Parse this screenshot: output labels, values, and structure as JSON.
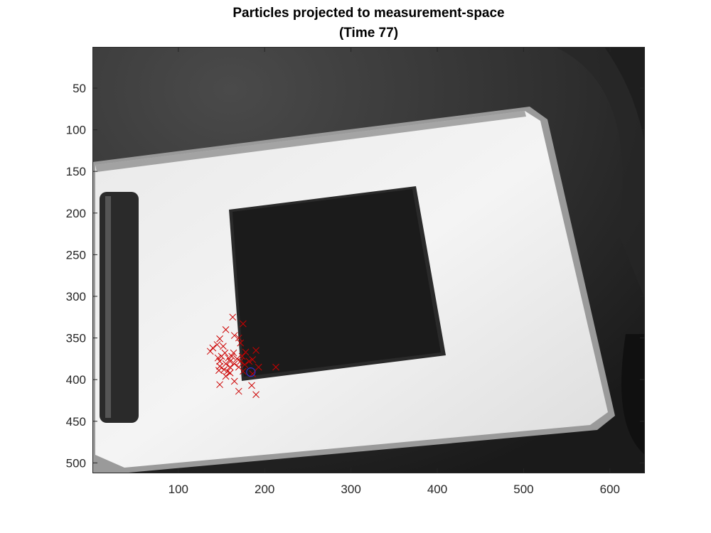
{
  "figure": {
    "title_line1": "Particles projected to measurement-space",
    "title_line2": "(Time 77)"
  },
  "chart_data": {
    "type": "scatter",
    "title": "Particles projected to measurement-space (Time 77)",
    "xlabel": "",
    "ylabel": "",
    "xlim": [
      0.5,
      640.5
    ],
    "ylim": [
      0.5,
      512.5
    ],
    "y_reversed": true,
    "grid": false,
    "x_ticks": [
      100,
      200,
      300,
      400,
      500,
      600
    ],
    "y_ticks": [
      50,
      100,
      150,
      200,
      250,
      300,
      350,
      400,
      450,
      500
    ],
    "background": "grayscale camera frame showing a white notebook with a black square",
    "series": [
      {
        "marker": "x",
        "color": "#cc0000",
        "points": [
          [
            163,
            325
          ],
          [
            175,
            333
          ],
          [
            155,
            340
          ],
          [
            165,
            347
          ],
          [
            170,
            350
          ],
          [
            148,
            351
          ],
          [
            172,
            356
          ],
          [
            145,
            358
          ],
          [
            152,
            360
          ],
          [
            140,
            362
          ],
          [
            137,
            366
          ],
          [
            190,
            365
          ],
          [
            178,
            367
          ],
          [
            154,
            368
          ],
          [
            164,
            368
          ],
          [
            150,
            372
          ],
          [
            162,
            372
          ],
          [
            174,
            372
          ],
          [
            146,
            374
          ],
          [
            158,
            374
          ],
          [
            168,
            375
          ],
          [
            186,
            376
          ],
          [
            148,
            378
          ],
          [
            160,
            378
          ],
          [
            172,
            378
          ],
          [
            182,
            378
          ],
          [
            155,
            381
          ],
          [
            165,
            381
          ],
          [
            177,
            382
          ],
          [
            148,
            384
          ],
          [
            160,
            385
          ],
          [
            170,
            385
          ],
          [
            193,
            385
          ],
          [
            213,
            385
          ],
          [
            153,
            388
          ],
          [
            147,
            389
          ],
          [
            157,
            390
          ],
          [
            175,
            390
          ],
          [
            160,
            392
          ],
          [
            186,
            393
          ],
          [
            155,
            396
          ],
          [
            165,
            402
          ],
          [
            148,
            406
          ],
          [
            185,
            407
          ],
          [
            170,
            414
          ],
          [
            190,
            418
          ]
        ]
      },
      {
        "marker": "o",
        "color": "#3333cc",
        "points": [
          [
            184,
            391
          ]
        ]
      }
    ]
  }
}
